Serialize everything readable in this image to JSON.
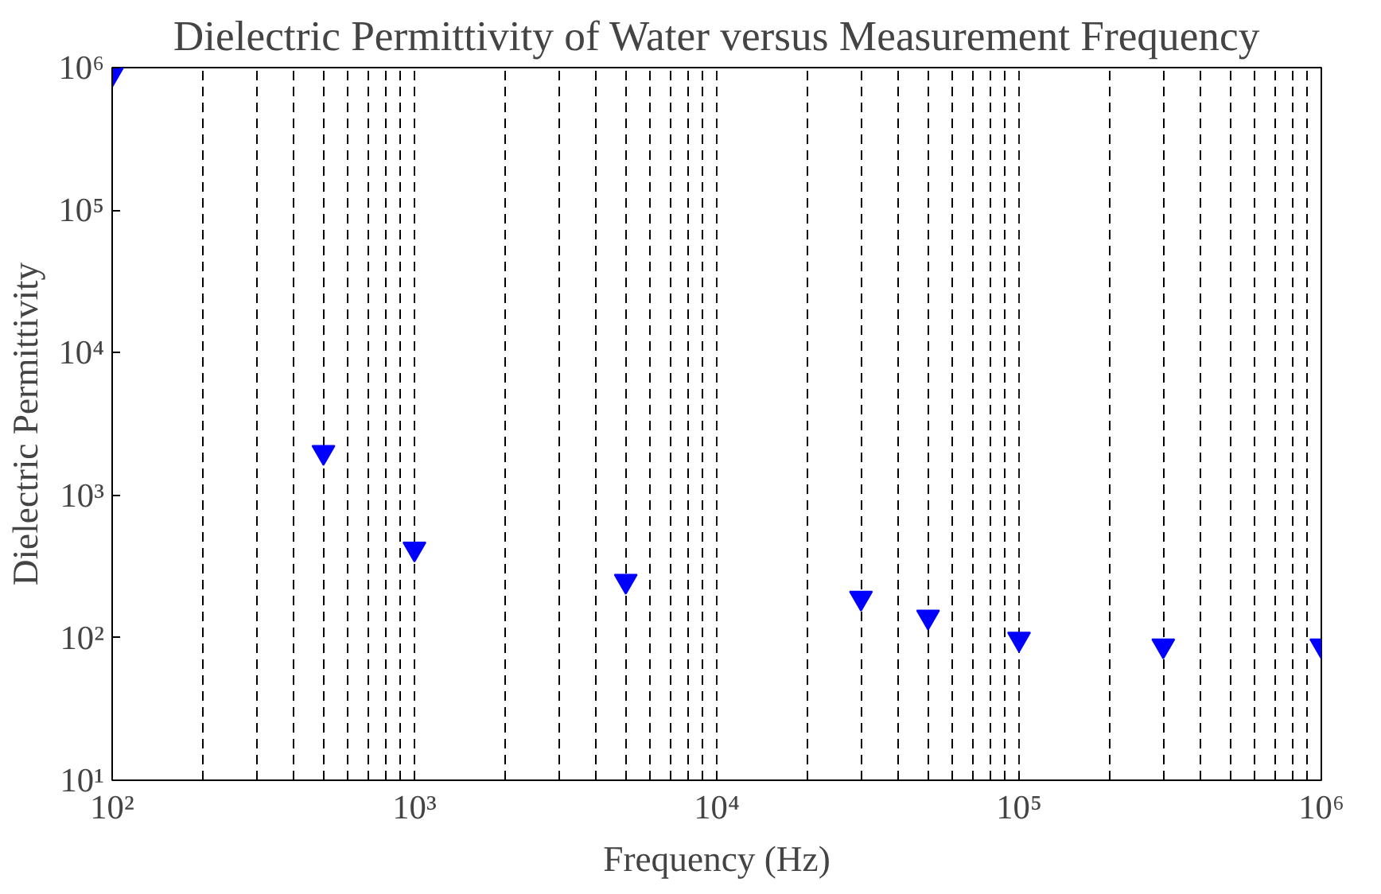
{
  "chart_data": {
    "type": "scatter",
    "title": "Dielectric Permittivity of Water versus Measurement Frequency",
    "xlabel": "Frequency (Hz)",
    "ylabel": "Dielectric Permittivity",
    "x": [
      100,
      500,
      1000,
      5000,
      30000,
      50000,
      100000,
      300000,
      1000000
    ],
    "series": [
      {
        "color": "#0000ff",
        "values": [
          900000,
          2000,
          420,
          250,
          190,
          140,
          98,
          88,
          88
        ]
      }
    ],
    "log": "xy",
    "marker": "triangle",
    "grid": "x",
    "xlim": [
      100,
      1000000
    ],
    "ylim": [
      10,
      1000000
    ],
    "xticks": [
      {
        "value": 100,
        "label": "10²"
      },
      {
        "value": 1000,
        "label": "10³"
      },
      {
        "value": 10000,
        "label": "10⁴"
      },
      {
        "value": 100000,
        "label": "10⁵"
      },
      {
        "value": 1000000,
        "label": "10⁶"
      }
    ],
    "yticks": [
      {
        "value": 10,
        "label": "10¹"
      },
      {
        "value": 100,
        "label": "10²"
      },
      {
        "value": 1000,
        "label": "10³"
      },
      {
        "value": 10000,
        "label": "10⁴"
      },
      {
        "value": 100000,
        "label": "10⁵"
      },
      {
        "value": 1000000,
        "label": "10⁶"
      }
    ]
  }
}
